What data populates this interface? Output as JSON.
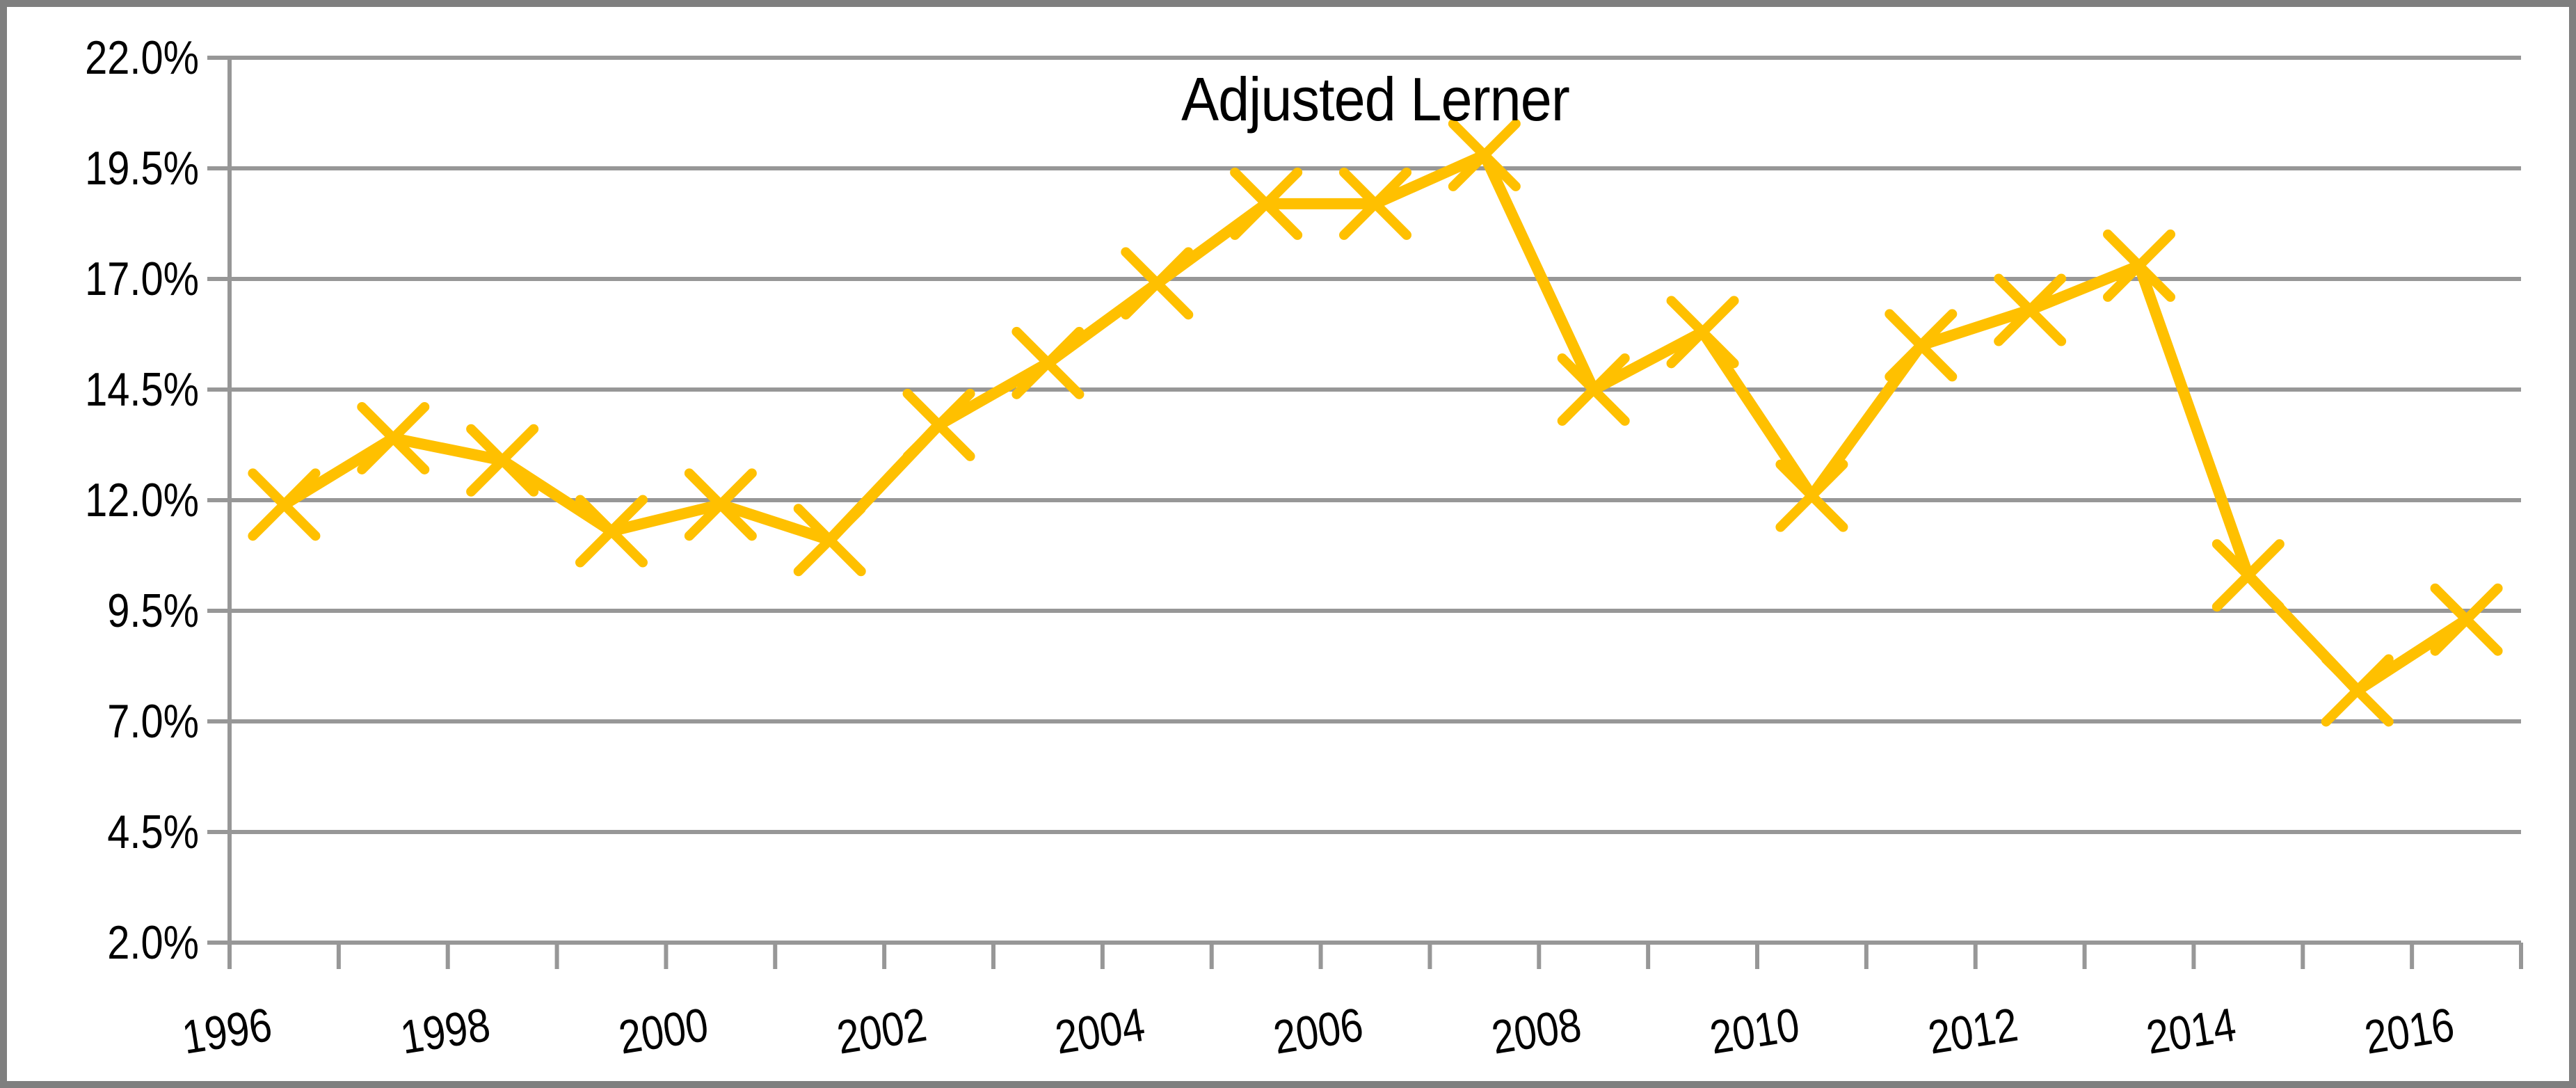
{
  "chart_data": {
    "type": "line",
    "title": "Adjusted Lerner",
    "x": [
      1996,
      1997,
      1998,
      1999,
      2000,
      2001,
      2002,
      2003,
      2004,
      2005,
      2006,
      2007,
      2008,
      2009,
      2010,
      2011,
      2012,
      2013,
      2014,
      2015,
      2016
    ],
    "series": [
      {
        "name": "Adjusted Lerner",
        "values": [
          11.9,
          13.4,
          12.9,
          11.3,
          11.9,
          11.1,
          13.7,
          15.1,
          16.9,
          18.7,
          18.7,
          19.8,
          14.5,
          15.8,
          12.1,
          15.5,
          16.3,
          17.3,
          10.3,
          7.7,
          9.3
        ]
      }
    ],
    "xlabel": "",
    "ylabel": "",
    "ylim": [
      2.0,
      22.0
    ],
    "y_tick_step": 2.5,
    "y_tick_labels": [
      "22.0%",
      "19.5%",
      "17.0%",
      "14.5%",
      "12.0%",
      "9.5%",
      "7.0%",
      "4.5%",
      "2.0%"
    ],
    "y_tick_values": [
      22.0,
      19.5,
      17.0,
      14.5,
      12.0,
      9.5,
      7.0,
      4.5,
      2.0
    ],
    "x_tick_labels": [
      "1996",
      "1998",
      "2000",
      "2002",
      "2004",
      "2006",
      "2008",
      "2010",
      "2012",
      "2014",
      "2016"
    ],
    "grid": true,
    "legend": "none",
    "marker": "x",
    "colors": {
      "line": "#FFC000",
      "gridline": "#979797",
      "frame": "#7F7F7F",
      "text": "#000000",
      "background": "#FFFFFF"
    }
  }
}
